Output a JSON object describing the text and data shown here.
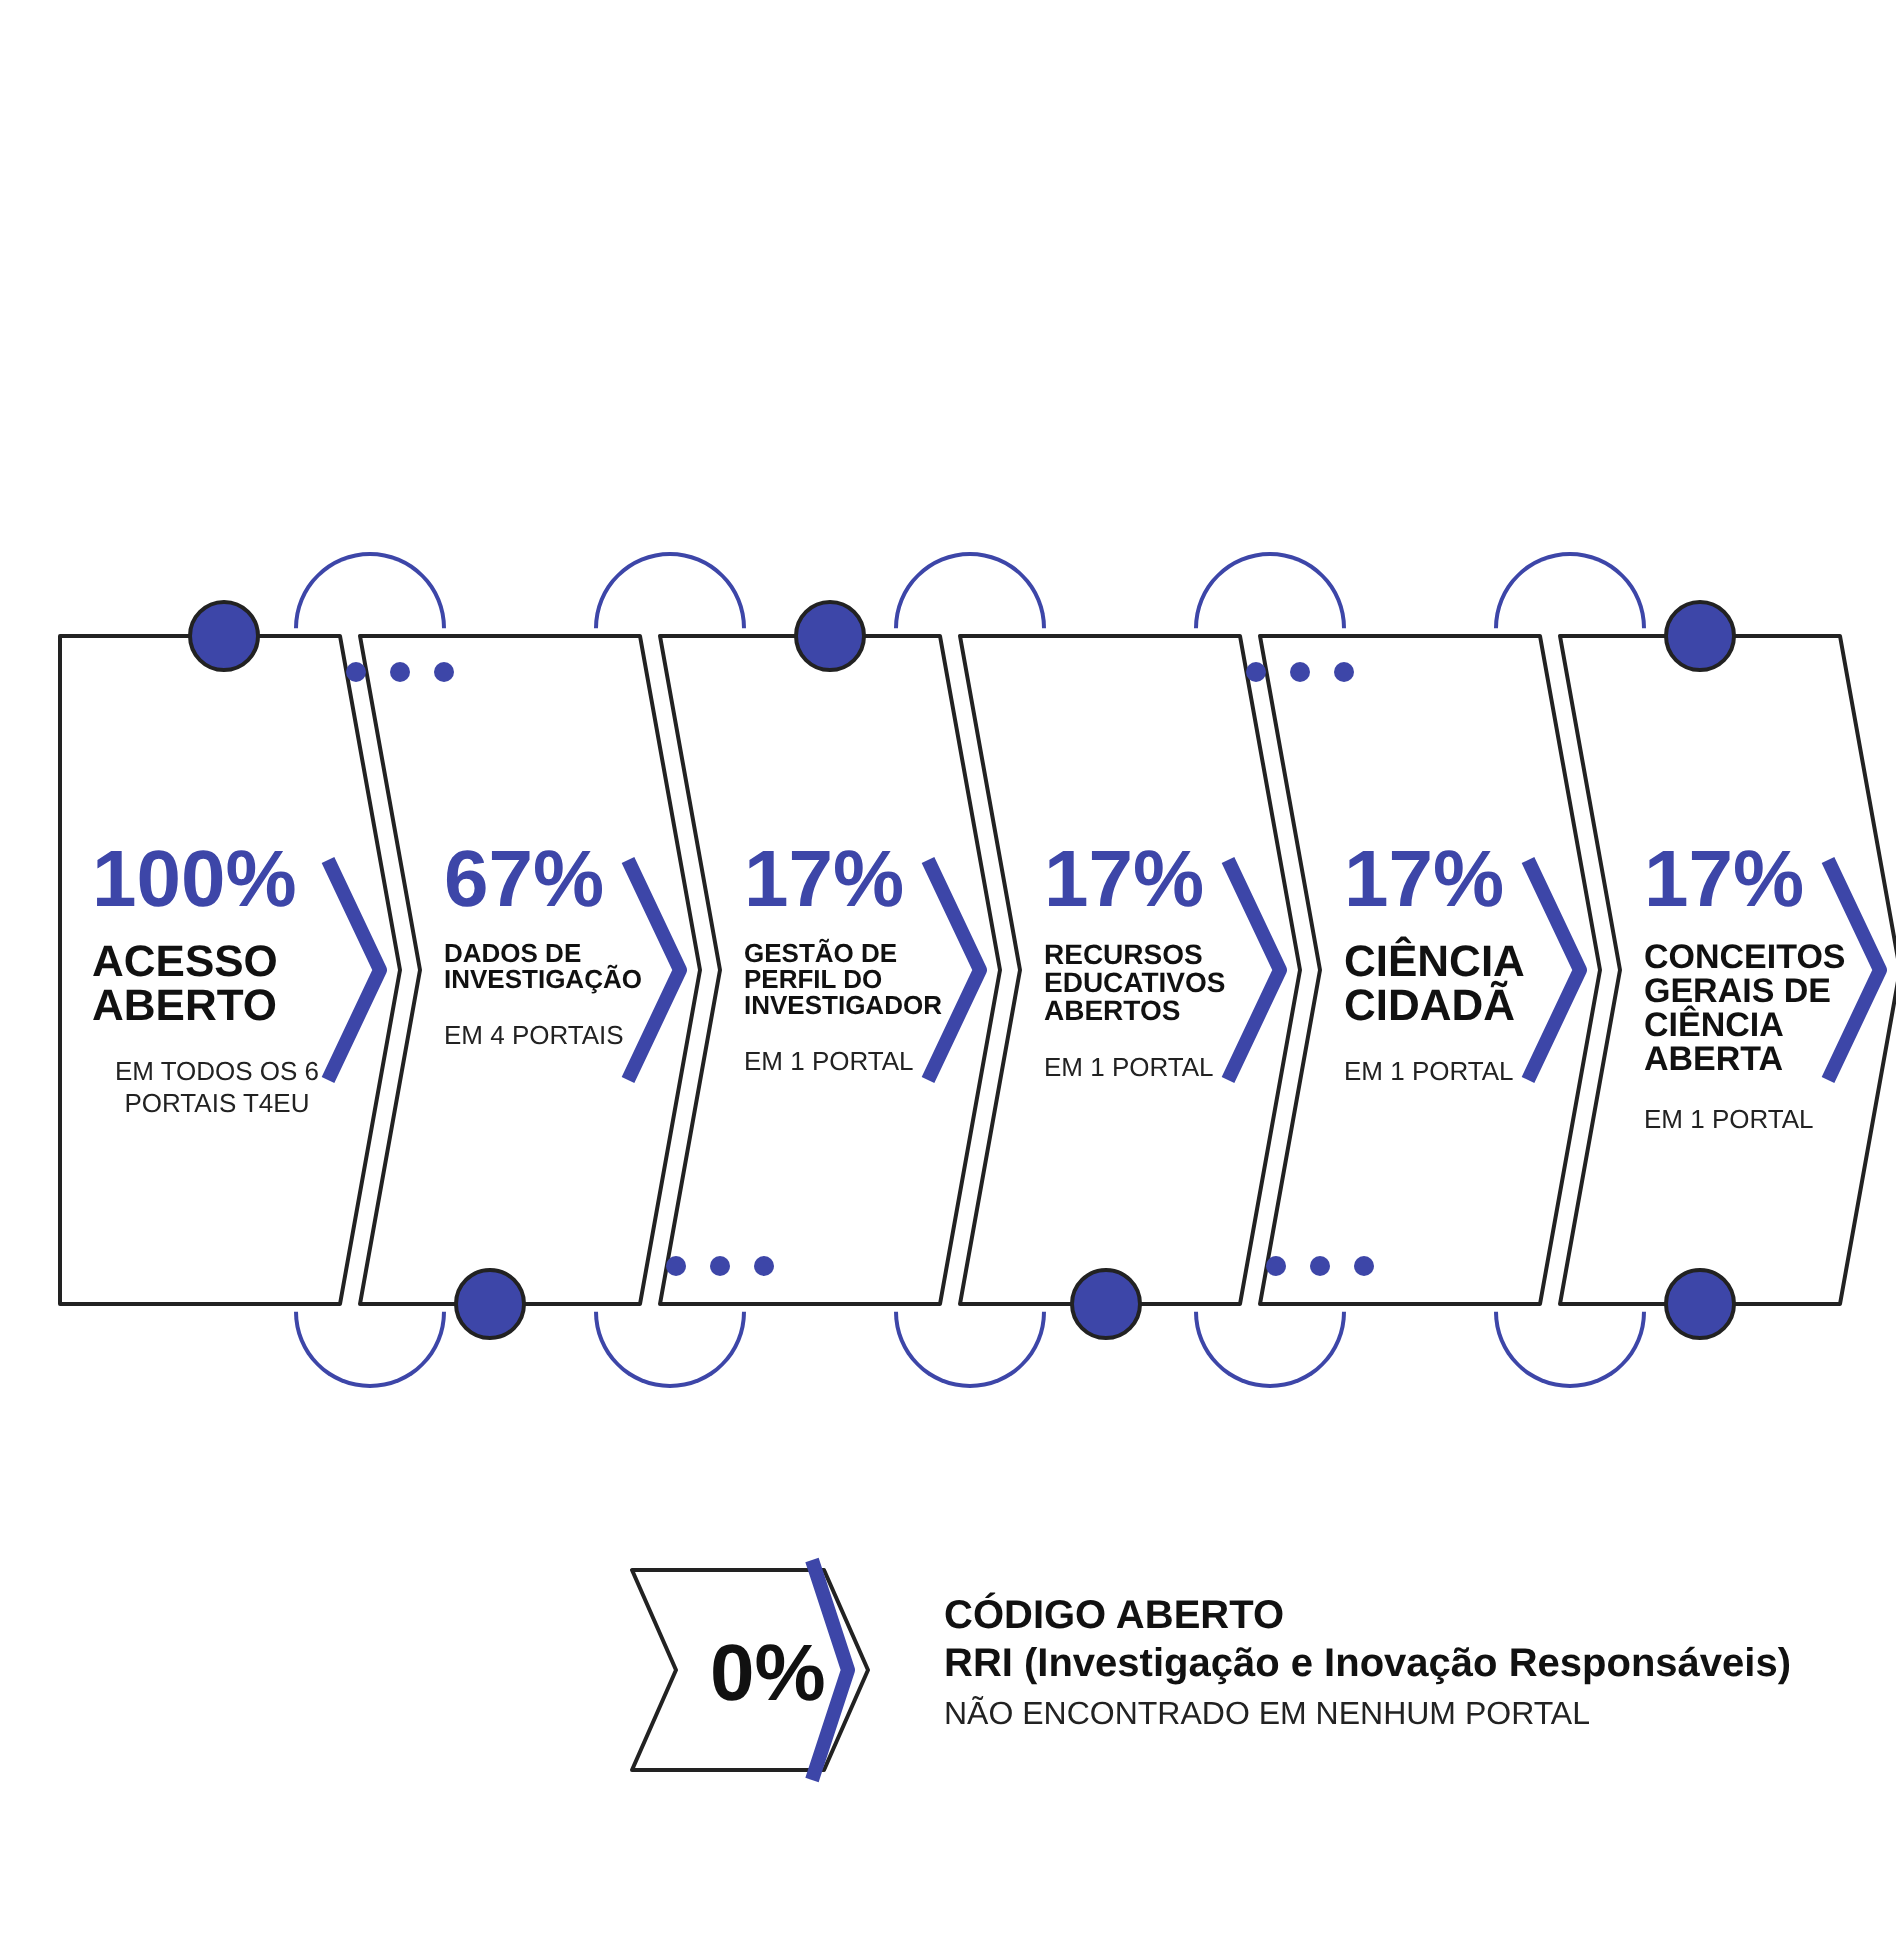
{
  "chart_data": {
    "type": "other",
    "categories": [
      "ACESSO ABERTO",
      "DADOS DE INVESTIGAÇÃO",
      "GESTÃO DE PERFIL DO INVESTIGADOR",
      "RECURSOS EDUCATIVOS ABERTOS",
      "CIÊNCIA CIDADÃ",
      "CONCEITOS GERAIS DE CIÊNCIA ABERTA",
      "CÓDIGO ABERTO\nRRI (Investigação e Inovação Responsáveis)"
    ],
    "values": [
      100,
      67,
      17,
      17,
      17,
      17,
      0
    ],
    "value_labels": [
      "100%",
      "67%",
      "17%",
      "17%",
      "17%",
      "17%",
      "0%"
    ],
    "annotations": [
      "EM TODOS OS 6 PORTAIS T4EU",
      "EM 4 PORTAIS",
      "EM 1 PORTAL",
      "EM 1 PORTAL",
      "EM 1 PORTAL",
      "EM 1 PORTAL",
      "NÃO ENCONTRADO EM NENHUM PORTAL"
    ]
  }
}
